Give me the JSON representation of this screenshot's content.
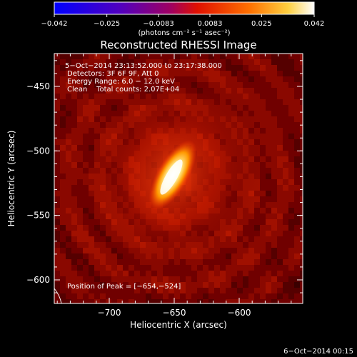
{
  "chart_data": {
    "type": "heatmap",
    "title": "Reconstructed RHESSI Image",
    "xlabel": "Heliocentric X (arcsec)",
    "ylabel": "Heliocentric Y (arcsec)",
    "xlim": [
      -745,
      -645
    ],
    "ylim": [
      -615,
      -425
    ],
    "xticks": [
      -700,
      -650,
      -600
    ],
    "xtick_labels": [
      "−700",
      "−650",
      "−600"
    ],
    "yticks": [
      -450,
      -500,
      -550,
      -600
    ],
    "ytick_labels": [
      "−450",
      "−500",
      "−550",
      "−600"
    ],
    "colorbar": {
      "range": [
        -0.042,
        0.042
      ],
      "ticks": [
        -0.042,
        -0.025,
        -0.0083,
        0.0083,
        0.025,
        0.042
      ],
      "tick_labels": [
        "−0.042",
        "−0.025",
        "−0.0083",
        "0.0083",
        "0.025",
        "0.042"
      ],
      "unit_label": "(photons cm⁻² s⁻¹ asec⁻²)",
      "colors": [
        "#0000ff",
        "#8000b0",
        "#c00020",
        "#ff5000",
        "#ffa000",
        "#ffffff"
      ]
    },
    "peak": {
      "x": -654,
      "y": -524
    },
    "source_orientation": "elongated, tilted NE–SW"
  },
  "annotations": {
    "time": "5−Oct−2014 23:13:52.000 to 23:17:38.000",
    "detectors": "Detectors: 3F 6F 9F, Att 0",
    "energy": "Energy Range: 6.0 − 12.0 keV",
    "clean": "Clean    Total counts: 2.07E+04",
    "peak_label": "Position of Peak = [−654,−524]"
  },
  "footer": {
    "date": "6−Oct−2014 00:15"
  }
}
